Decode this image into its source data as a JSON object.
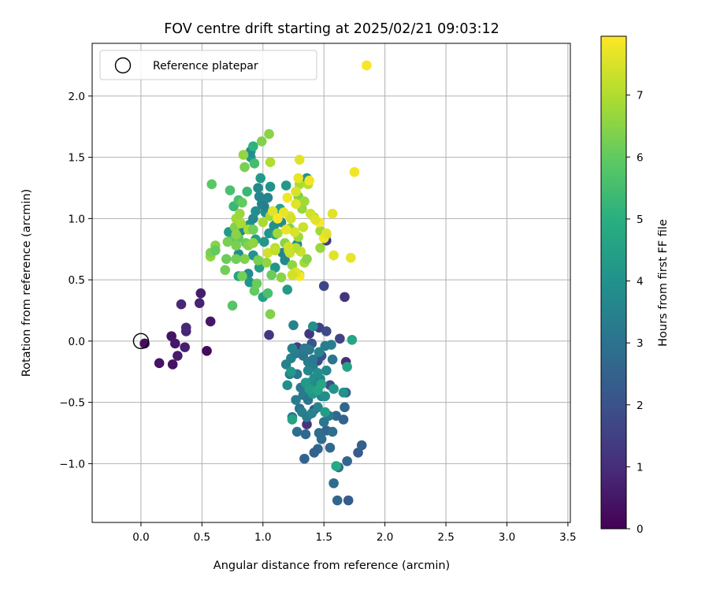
{
  "chart_data": {
    "type": "scatter",
    "title": "FOV centre drift starting at 2025/02/21 09:03:12",
    "xlabel": "Angular distance from reference (arcmin)",
    "ylabel": "Rotation from reference (arcmin)",
    "xlim": [
      -0.4,
      3.52
    ],
    "ylim": [
      -1.48,
      2.43
    ],
    "xticks": [
      "0.0",
      "0.5",
      "1.0",
      "1.5",
      "2.0",
      "2.5",
      "3.0",
      "3.5"
    ],
    "yticks": [
      "−1.0",
      "−0.5",
      "0.0",
      "0.5",
      "1.0",
      "1.5",
      "2.0"
    ],
    "grid": true,
    "legend": {
      "placement": "upper-left",
      "label": "Reference platepar"
    },
    "reference_point": {
      "x": 0.0,
      "y": 0.0
    },
    "colorbar": {
      "label": "Hours from first FF file",
      "min": 0,
      "max": 7.95,
      "ticks": [
        "0",
        "1",
        "2",
        "3",
        "4",
        "5",
        "6",
        "7"
      ],
      "colormap": "viridis"
    },
    "points": [
      [
        1.85,
        2.25,
        7.9
      ],
      [
        0.03,
        -0.02,
        0.3
      ],
      [
        0.25,
        0.04,
        0.4
      ],
      [
        0.28,
        -0.02,
        0.5
      ],
      [
        0.3,
        -0.12,
        0.6
      ],
      [
        0.36,
        -0.05,
        0.7
      ],
      [
        0.15,
        -0.18,
        0.4
      ],
      [
        0.26,
        -0.19,
        0.4
      ],
      [
        0.37,
        0.08,
        0.8
      ],
      [
        0.37,
        0.11,
        0.9
      ],
      [
        0.33,
        0.3,
        0.9
      ],
      [
        0.48,
        0.31,
        0.8
      ],
      [
        0.49,
        0.39,
        0.6
      ],
      [
        0.57,
        0.16,
        0.5
      ],
      [
        0.54,
        -0.08,
        0.2
      ],
      [
        1.05,
        0.05,
        1.3
      ],
      [
        1.28,
        -0.05,
        1.4
      ],
      [
        1.38,
        0.06,
        1.2
      ],
      [
        1.46,
        0.11,
        1.5
      ],
      [
        1.5,
        0.45,
        1.7
      ],
      [
        1.52,
        0.82,
        1.4
      ],
      [
        1.67,
        0.36,
        1.2
      ],
      [
        1.63,
        0.02,
        1.6
      ],
      [
        1.68,
        -0.17,
        1.0
      ],
      [
        1.45,
        -0.16,
        1.8
      ],
      [
        1.55,
        -0.36,
        1.9
      ],
      [
        1.36,
        -0.68,
        1.2
      ],
      [
        1.42,
        -0.56,
        2.0
      ],
      [
        1.48,
        -0.12,
        2.0
      ],
      [
        1.4,
        -0.02,
        2.1
      ],
      [
        1.52,
        0.08,
        1.8
      ],
      [
        1.78,
        -0.91,
        2.3
      ],
      [
        1.81,
        -0.85,
        2.4
      ],
      [
        1.7,
        -1.3,
        2.3
      ],
      [
        1.61,
        -1.3,
        2.6
      ],
      [
        1.58,
        -1.16,
        2.8
      ],
      [
        1.69,
        -0.98,
        2.6
      ],
      [
        1.62,
        -1.03,
        2.9
      ],
      [
        1.34,
        -0.96,
        2.5
      ],
      [
        1.45,
        -0.88,
        2.6
      ],
      [
        1.42,
        -0.91,
        2.5
      ],
      [
        1.52,
        -0.73,
        2.6
      ],
      [
        1.55,
        -0.87,
        2.7
      ],
      [
        1.48,
        -0.8,
        2.8
      ],
      [
        1.57,
        -0.74,
        2.9
      ],
      [
        1.6,
        -0.61,
        2.7
      ],
      [
        1.66,
        -0.64,
        2.5
      ],
      [
        1.67,
        -0.54,
        2.6
      ],
      [
        1.68,
        -0.42,
        2.5
      ],
      [
        1.46,
        -0.75,
        2.8
      ],
      [
        1.35,
        -0.76,
        2.7
      ],
      [
        1.28,
        -0.74,
        2.9
      ],
      [
        1.24,
        -0.62,
        3.1
      ],
      [
        1.3,
        -0.55,
        3.0
      ],
      [
        1.33,
        -0.44,
        3.2
      ],
      [
        1.37,
        -0.48,
        3.1
      ],
      [
        1.27,
        -0.48,
        3.3
      ],
      [
        1.32,
        -0.58,
        3.4
      ],
      [
        1.36,
        -0.62,
        3.3
      ],
      [
        1.4,
        -0.59,
        3.5
      ],
      [
        1.45,
        -0.54,
        3.6
      ],
      [
        1.48,
        -0.45,
        3.5
      ],
      [
        1.43,
        -0.4,
        3.8
      ],
      [
        1.38,
        -0.34,
        3.8
      ],
      [
        1.42,
        -0.3,
        3.9
      ],
      [
        1.47,
        -0.31,
        3.6
      ],
      [
        1.51,
        -0.45,
        3.9
      ],
      [
        1.54,
        -0.61,
        3.2
      ],
      [
        1.5,
        -0.66,
        3.1
      ],
      [
        1.44,
        -0.37,
        3.7
      ],
      [
        1.39,
        -0.42,
        3.4
      ],
      [
        1.31,
        -0.38,
        3.2
      ],
      [
        1.28,
        -0.27,
        3.1
      ],
      [
        1.22,
        -0.27,
        3.3
      ],
      [
        1.19,
        -0.19,
        3.5
      ],
      [
        1.23,
        -0.14,
        3.5
      ],
      [
        1.27,
        -0.1,
        3.3
      ],
      [
        1.33,
        -0.12,
        3.0
      ],
      [
        1.37,
        -0.17,
        3.3
      ],
      [
        1.41,
        -0.21,
        3.4
      ],
      [
        1.37,
        -0.24,
        3.6
      ],
      [
        1.41,
        -0.15,
        3.2
      ],
      [
        1.46,
        -0.09,
        3.6
      ],
      [
        1.51,
        -0.04,
        3.3
      ],
      [
        1.56,
        -0.03,
        3.4
      ],
      [
        1.57,
        -0.15,
        3.1
      ],
      [
        1.52,
        -0.24,
        3.7
      ],
      [
        1.45,
        -0.26,
        3.9
      ],
      [
        1.38,
        -0.07,
        3.2
      ],
      [
        1.34,
        -0.06,
        3.2
      ],
      [
        1.24,
        -0.06,
        3.5
      ],
      [
        1.2,
        -0.36,
        3.9
      ],
      [
        1.23,
        -0.25,
        4.2
      ],
      [
        1.25,
        0.13,
        3.5
      ],
      [
        1.41,
        0.12,
        3.9
      ],
      [
        1.69,
        -0.21,
        4.6
      ],
      [
        1.66,
        -0.42,
        4.0
      ],
      [
        1.58,
        -0.39,
        4.1
      ],
      [
        1.51,
        -0.58,
        4.4
      ],
      [
        1.41,
        -0.43,
        4.2
      ],
      [
        1.38,
        -0.39,
        4.4
      ],
      [
        1.35,
        -0.34,
        4.3
      ],
      [
        1.45,
        -0.4,
        4.6
      ],
      [
        1.6,
        -1.02,
        4.8
      ],
      [
        1.24,
        -0.64,
        4.6
      ],
      [
        1.48,
        -0.35,
        4.7
      ],
      [
        1.73,
        0.01,
        4.7
      ],
      [
        1.2,
        0.42,
        4.3
      ],
      [
        1.1,
        0.6,
        4.1
      ],
      [
        1.0,
        0.36,
        4.5
      ],
      [
        0.97,
        0.6,
        4.5
      ],
      [
        0.92,
        0.7,
        4.0
      ],
      [
        0.88,
        0.55,
        3.8
      ],
      [
        0.8,
        0.71,
        3.9
      ],
      [
        0.82,
        0.9,
        3.6
      ],
      [
        0.89,
        0.95,
        4.1
      ],
      [
        0.92,
        1.0,
        3.7
      ],
      [
        0.94,
        1.06,
        3.9
      ],
      [
        0.99,
        1.12,
        3.6
      ],
      [
        1.04,
        1.17,
        3.6
      ],
      [
        1.08,
        1.06,
        3.5
      ],
      [
        1.11,
        1.0,
        3.7
      ],
      [
        1.15,
        0.97,
        3.8
      ],
      [
        1.09,
        0.94,
        3.9
      ],
      [
        1.05,
        0.88,
        4.0
      ],
      [
        1.02,
        1.05,
        3.9
      ],
      [
        0.97,
        1.18,
        3.6
      ],
      [
        1.01,
        1.1,
        3.4
      ],
      [
        0.96,
        1.25,
        3.7
      ],
      [
        0.98,
        1.33,
        4.3
      ],
      [
        0.9,
        1.5,
        4.2
      ],
      [
        0.9,
        1.55,
        3.9
      ],
      [
        1.06,
        1.26,
        4.0
      ],
      [
        1.19,
        1.27,
        4.2
      ],
      [
        1.36,
        1.33,
        4.1
      ],
      [
        1.28,
        0.79,
        3.8
      ],
      [
        1.16,
        0.72,
        3.5
      ],
      [
        1.18,
        0.66,
        3.7
      ],
      [
        0.89,
        0.48,
        4.1
      ],
      [
        0.8,
        0.53,
        4.6
      ],
      [
        0.72,
        0.89,
        4.3
      ],
      [
        0.94,
        0.83,
        4.4
      ],
      [
        1.01,
        0.81,
        4.2
      ],
      [
        1.1,
        0.87,
        4.6
      ],
      [
        1.14,
        1.08,
        4.6
      ],
      [
        0.93,
        1.45,
        5.5
      ],
      [
        0.76,
        1.1,
        5.3
      ],
      [
        0.8,
        1.15,
        5.6
      ],
      [
        0.83,
        1.13,
        6.0
      ],
      [
        0.87,
        1.22,
        5.3
      ],
      [
        0.92,
        1.59,
        5.1
      ],
      [
        0.84,
        1.52,
        6.6
      ],
      [
        0.85,
        1.42,
        6.3
      ],
      [
        0.99,
        1.63,
        6.4
      ],
      [
        1.05,
        1.69,
        6.5
      ],
      [
        1.06,
        1.46,
        7.0
      ],
      [
        0.58,
        1.28,
        5.9
      ],
      [
        0.73,
        1.23,
        5.6
      ],
      [
        0.75,
        0.82,
        5.9
      ],
      [
        0.75,
        0.29,
        5.8
      ],
      [
        1.06,
        0.22,
        6.4
      ],
      [
        0.93,
        0.41,
        6.0
      ],
      [
        1.04,
        0.39,
        5.6
      ],
      [
        0.95,
        0.47,
        6.1
      ],
      [
        1.07,
        0.54,
        6.1
      ],
      [
        1.15,
        0.52,
        6.5
      ],
      [
        1.03,
        0.64,
        6.6
      ],
      [
        0.96,
        0.66,
        6.3
      ],
      [
        0.85,
        0.67,
        6.4
      ],
      [
        0.78,
        0.67,
        6.2
      ],
      [
        0.7,
        0.67,
        6.1
      ],
      [
        0.69,
        0.58,
        6.2
      ],
      [
        0.83,
        0.53,
        6.2
      ],
      [
        0.57,
        0.69,
        6.6
      ],
      [
        0.57,
        0.72,
        6.3
      ],
      [
        0.61,
        0.78,
        6.5
      ],
      [
        0.61,
        0.74,
        6.0
      ],
      [
        0.71,
        0.81,
        6.3
      ],
      [
        0.8,
        0.84,
        6.0
      ],
      [
        0.78,
        0.78,
        6.3
      ],
      [
        0.86,
        0.8,
        6.1
      ],
      [
        0.88,
        0.78,
        6.4
      ],
      [
        0.92,
        0.8,
        6.6
      ],
      [
        0.88,
        0.91,
        6.9
      ],
      [
        0.77,
        0.93,
        6.4
      ],
      [
        0.78,
        1.0,
        6.8
      ],
      [
        0.81,
        1.04,
        6.7
      ],
      [
        0.78,
        0.87,
        6.5
      ],
      [
        0.82,
        0.96,
        6.9
      ],
      [
        0.92,
        0.91,
        6.2
      ],
      [
        1.0,
        0.97,
        6.9
      ],
      [
        1.06,
        1.02,
        6.8
      ],
      [
        1.12,
        0.88,
        6.8
      ],
      [
        1.22,
        0.92,
        6.4
      ],
      [
        1.18,
        0.8,
        6.5
      ],
      [
        1.21,
        0.74,
        6.9
      ],
      [
        1.24,
        0.62,
        6.6
      ],
      [
        1.29,
        0.85,
        6.8
      ],
      [
        1.32,
        1.08,
        6.7
      ],
      [
        1.29,
        1.18,
        6.4
      ],
      [
        1.3,
        1.28,
        6.9
      ],
      [
        1.34,
        1.14,
        6.8
      ],
      [
        1.37,
        1.28,
        7.1
      ],
      [
        1.42,
        1.01,
        7.0
      ],
      [
        1.47,
        0.9,
        6.8
      ],
      [
        1.52,
        0.87,
        6.9
      ],
      [
        1.47,
        0.76,
        6.7
      ],
      [
        1.3,
        0.54,
        6.7
      ],
      [
        1.31,
        0.73,
        7.3
      ],
      [
        1.34,
        0.64,
        6.8
      ],
      [
        1.36,
        0.67,
        6.5
      ],
      [
        1.27,
        0.76,
        7.1
      ],
      [
        1.21,
        0.77,
        7.4
      ],
      [
        1.1,
        0.76,
        7.1
      ],
      [
        1.04,
        0.72,
        7.4
      ],
      [
        1.1,
        0.74,
        7.2
      ],
      [
        1.22,
        1.02,
        7.6
      ],
      [
        1.27,
        1.12,
        7.6
      ],
      [
        1.2,
        1.17,
        7.8
      ],
      [
        1.27,
        1.22,
        7.5
      ],
      [
        1.23,
        1.0,
        7.4
      ],
      [
        1.3,
        1.48,
        7.6
      ],
      [
        1.29,
        1.33,
        7.7
      ],
      [
        1.38,
        1.31,
        7.8
      ],
      [
        1.46,
        0.97,
        7.9
      ],
      [
        1.5,
        0.84,
        7.8
      ],
      [
        1.52,
        0.88,
        7.6
      ],
      [
        1.57,
        1.04,
        7.6
      ],
      [
        1.58,
        0.7,
        7.6
      ],
      [
        1.72,
        0.68,
        7.7
      ],
      [
        1.75,
        1.38,
        7.8
      ],
      [
        1.17,
        1.05,
        7.7
      ],
      [
        1.08,
        1.06,
        7.6
      ],
      [
        1.12,
        1.0,
        7.9
      ],
      [
        1.19,
        0.91,
        7.7
      ],
      [
        1.26,
        0.89,
        7.5
      ],
      [
        1.33,
        0.93,
        7.3
      ],
      [
        1.39,
        1.04,
        7.4
      ],
      [
        1.43,
        0.99,
        7.6
      ],
      [
        1.3,
        0.53,
        7.9
      ],
      [
        1.27,
        0.56,
        7.6
      ],
      [
        1.24,
        0.54,
        7.4
      ],
      [
        1.22,
        0.72,
        7.3
      ]
    ]
  }
}
